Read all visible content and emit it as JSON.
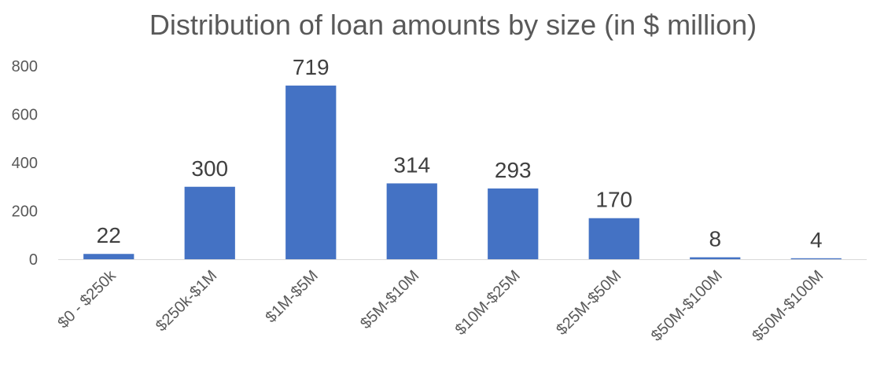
{
  "chart_data": {
    "type": "bar",
    "title": "Distribution of loan amounts by size (in $ million)",
    "xlabel": "",
    "ylabel": "",
    "categories": [
      "$0 - $250k",
      "$250k-$1M",
      "$1M-$5M",
      "$5M-$10M",
      "$10M-$25M",
      "$25M-$50M",
      "$50M-$100M",
      "$50M-$100M"
    ],
    "values": [
      22,
      300,
      719,
      314,
      293,
      170,
      8,
      4
    ],
    "data_labels": [
      "22",
      "300",
      "719",
      "314",
      "293",
      "170",
      "8",
      "4"
    ],
    "y_ticks": [
      "0",
      "200",
      "400",
      "600",
      "800"
    ],
    "ylim": [
      0,
      800
    ],
    "grid": false,
    "legend": "none",
    "bar_color": "#4472C4",
    "axis_color": "#D9D9D9"
  }
}
